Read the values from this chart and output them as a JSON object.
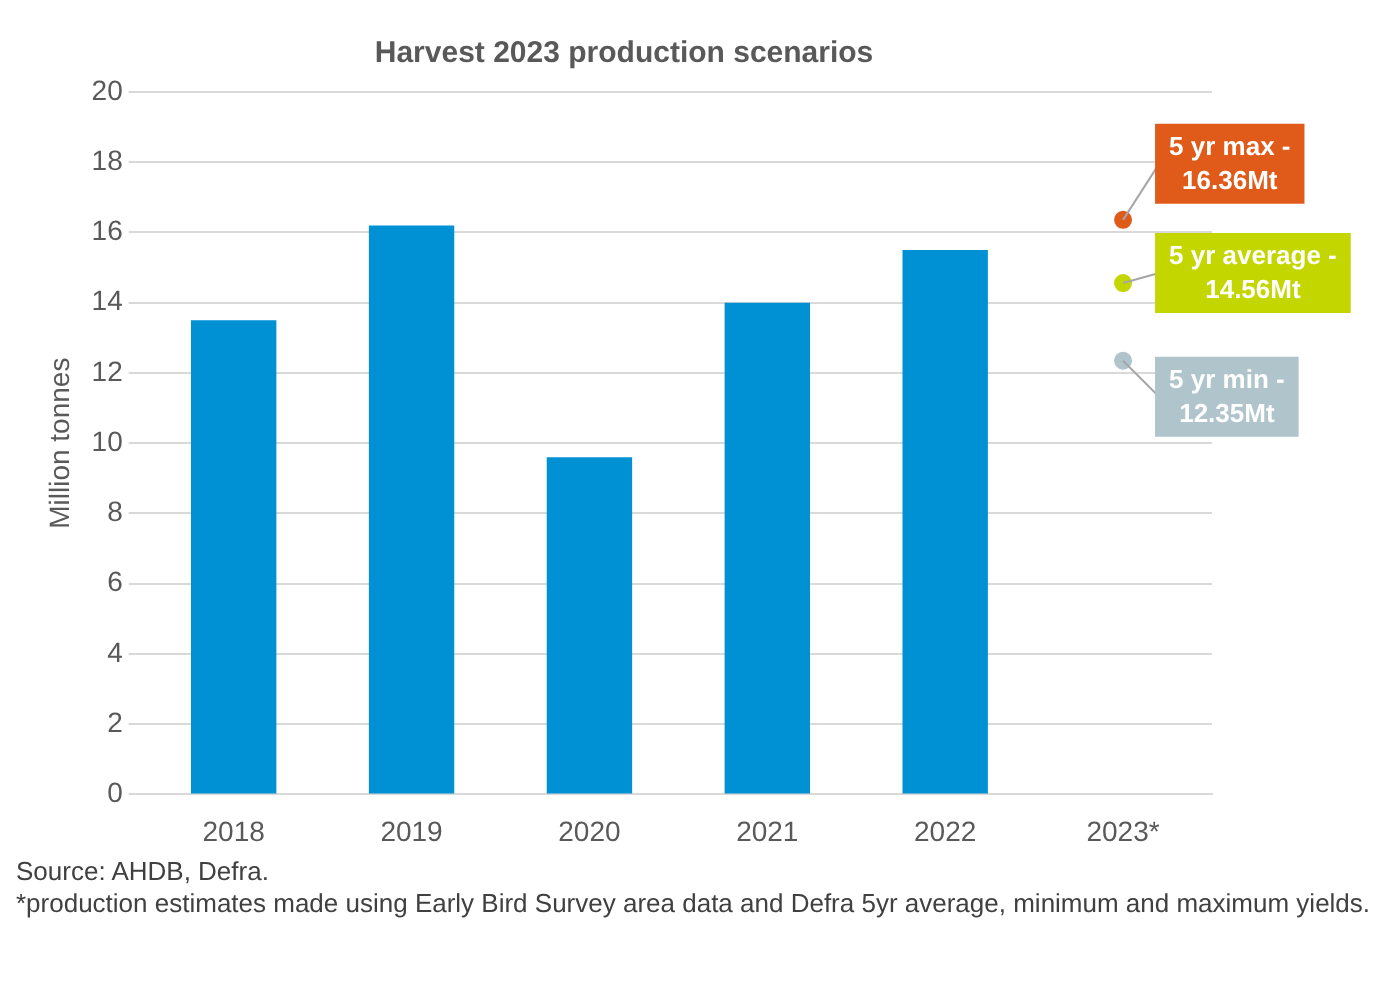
{
  "chart_data": {
    "type": "bar",
    "title": "Harvest 2023 production scenarios",
    "ylabel": "Million tonnes",
    "categories": [
      "2018",
      "2019",
      "2020",
      "2021",
      "2022",
      "2023*"
    ],
    "series": [
      {
        "color": "#0090d4",
        "values": [
          13.5,
          16.2,
          9.6,
          14.0,
          15.5,
          null
        ]
      },
      {
        "type": "scatter",
        "color": "#e05a1a",
        "x": [
          "2023*"
        ],
        "values": [
          16.36
        ]
      },
      {
        "type": "scatter",
        "color": "#c4d600",
        "x": [
          "2023*"
        ],
        "values": [
          14.56
        ]
      },
      {
        "type": "scatter",
        "color": "#b0c4cc",
        "x": [
          "2023*"
        ],
        "values": [
          12.35
        ]
      }
    ],
    "marker": "circle",
    "ylim": [
      0,
      20
    ],
    "yticks": [
      0,
      2,
      4,
      6,
      8,
      10,
      12,
      14,
      16,
      18,
      20
    ],
    "grid": "y",
    "legend": false,
    "annotations": [
      {
        "text": "5 yr max - 16.36Mt",
        "x": "2023*",
        "y": 16.36
      },
      {
        "text": "5 yr average - 14.56Mt",
        "x": "2023*",
        "y": 14.56
      },
      {
        "text": "5 yr min - 12.35Mt",
        "x": "2023*",
        "y": 12.35
      },
      "Source: AHDB, Defra.",
      "*production estimates made using Early Bird Survey area data and Defra 5yr average, minimum and maximum yields."
    ]
  }
}
